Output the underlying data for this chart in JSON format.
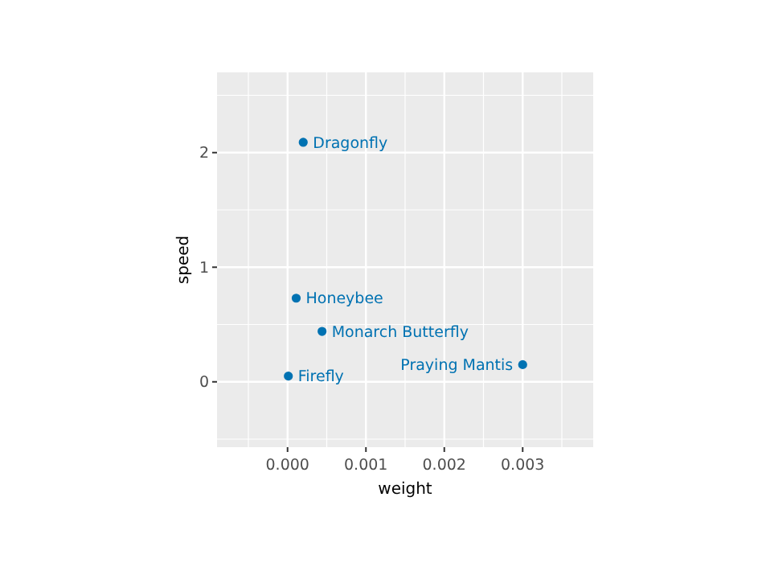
{
  "chart_data": {
    "type": "scatter",
    "xlabel": "weight",
    "ylabel": "speed",
    "x": [
      0.0002,
      0.00011,
      0.00044,
      1e-05,
      0.003
    ],
    "values": [
      2.09,
      0.73,
      0.44,
      0.05,
      0.15
    ],
    "color": "#0072b2",
    "marker": "circle",
    "grid": true,
    "xlim": [
      -0.0009,
      0.0039
    ],
    "xticks": [
      {
        "value": 0,
        "label": "0.000"
      },
      {
        "value": 0.001,
        "label": "0.001"
      },
      {
        "value": 0.002,
        "label": "0.002"
      },
      {
        "value": 0.003,
        "label": "0.003"
      }
    ],
    "ylim": [
      -0.57,
      2.7
    ],
    "yticks": [
      0,
      1,
      2
    ],
    "annotations": [
      {
        "text": "Dragonfly",
        "x": 0.0002,
        "y": 2.09
      },
      {
        "text": "Honeybee",
        "x": 0.00011,
        "y": 0.73
      },
      {
        "text": "Monarch Butterfly",
        "x": 0.00044,
        "y": 0.44
      },
      {
        "text": "Firefly",
        "x": 1e-05,
        "y": 0.05
      },
      {
        "text": "Praying Mantis",
        "x": 0.003,
        "y": 0.15
      }
    ]
  }
}
